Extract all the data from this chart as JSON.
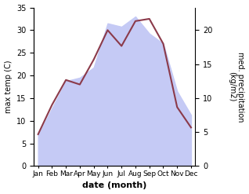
{
  "months": [
    "Jan",
    "Feb",
    "Mar",
    "Apr",
    "May",
    "Jun",
    "Jul",
    "Aug",
    "Sep",
    "Oct",
    "Nov",
    "Dec"
  ],
  "temp": [
    7.0,
    13.5,
    19.0,
    18.0,
    23.5,
    30.0,
    26.5,
    32.0,
    32.5,
    27.0,
    13.0,
    8.5
  ],
  "precip": [
    4.5,
    8.5,
    12.5,
    13.0,
    14.5,
    21.0,
    20.5,
    22.0,
    19.5,
    18.0,
    11.0,
    7.5
  ],
  "temp_color": "#8b3a4a",
  "precip_fill_color": "#c5caf5",
  "ylabel_left": "max temp (C)",
  "ylabel_right": "med. precipitation\n(kg/m2)",
  "xlabel": "date (month)",
  "temp_ylim": [
    0,
    35
  ],
  "temp_yticks": [
    0,
    5,
    10,
    15,
    20,
    25,
    30,
    35
  ],
  "precip_ylim": [
    0,
    23.33
  ],
  "precip_yticks": [
    0,
    5,
    10,
    15,
    20
  ]
}
